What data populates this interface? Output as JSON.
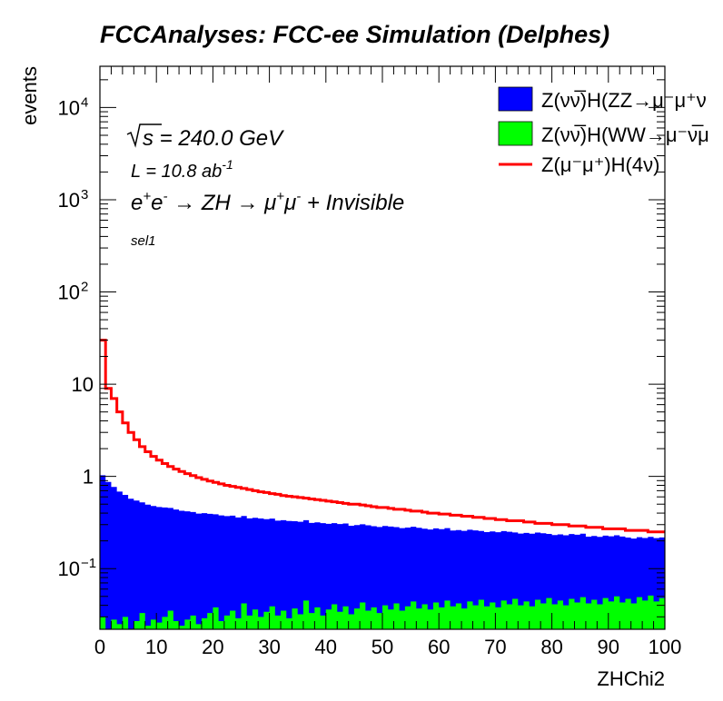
{
  "chart_data": {
    "type": "histogram",
    "title": "FCCAnalyses: FCC-ee Simulation (Delphes)",
    "xlabel": "ZHChi2",
    "ylabel": "events",
    "xlim": [
      0,
      100
    ],
    "ylim": [
      0.022,
      28000
    ],
    "y_scale": "log",
    "bin_width": 1,
    "x_ticks": [
      "0",
      "10",
      "20",
      "30",
      "40",
      "50",
      "60",
      "70",
      "80",
      "90",
      "100"
    ],
    "y_ticks": [
      {
        "label": "10",
        "sup": "−1",
        "value": 0.1
      },
      {
        "label": "1",
        "sup": "",
        "value": 1
      },
      {
        "label": "10",
        "sup": "",
        "value": 10
      },
      {
        "label": "10",
        "sup": "2",
        "value": 100
      },
      {
        "label": "10",
        "sup": "3",
        "value": 1000
      },
      {
        "label": "10",
        "sup": "4",
        "value": 10000
      }
    ],
    "annotations": {
      "sqrt_s": "s",
      "energy": " = 240.0 GeV",
      "lumi": "L = 10.8 ab",
      "lumi_sup": "-1",
      "process_ee_e1": "e",
      "process_ee_sup1": "+",
      "process_ee_e2": "e",
      "process_ee_sup2": "-",
      "process_arrow1": "  → ZH  → μ",
      "process_mu_sup1": "+",
      "process_mu": "μ",
      "process_mu_sup2": "-",
      "process_tail": " + Invisible",
      "selection": "sel1"
    },
    "legend_position": "top-right",
    "series": [
      {
        "name": "Z(νν̅)H(ZZ→μ⁻μ⁺ν",
        "style": "stacked-fill",
        "color": "#0000ff",
        "values": [
          1.0,
          0.85,
          0.74,
          0.66,
          0.6,
          0.55,
          0.52,
          0.49,
          0.47,
          0.45,
          0.44,
          0.43,
          0.42,
          0.41,
          0.4,
          0.39,
          0.38,
          0.37,
          0.37,
          0.36,
          0.35,
          0.35,
          0.34,
          0.34,
          0.33,
          0.33,
          0.32,
          0.32,
          0.32,
          0.31,
          0.31,
          0.3,
          0.3,
          0.3,
          0.29,
          0.29,
          0.29,
          0.28,
          0.28,
          0.28,
          0.27,
          0.27,
          0.27,
          0.27,
          0.26,
          0.26,
          0.26,
          0.26,
          0.25,
          0.25,
          0.25,
          0.25,
          0.24,
          0.24,
          0.24,
          0.24,
          0.24,
          0.23,
          0.23,
          0.23,
          0.23,
          0.23,
          0.22,
          0.22,
          0.22,
          0.22,
          0.22,
          0.21,
          0.21,
          0.21,
          0.21,
          0.21,
          0.21,
          0.2,
          0.2,
          0.2,
          0.2,
          0.2,
          0.2,
          0.19,
          0.19,
          0.19,
          0.19,
          0.19,
          0.19,
          0.19,
          0.18,
          0.18,
          0.18,
          0.18,
          0.18,
          0.18,
          0.18,
          0.17,
          0.17,
          0.17,
          0.17,
          0.17,
          0.17,
          0.17
        ]
      },
      {
        "name": "Z(νν̅)H(WW→μ⁻ν̅μ",
        "style": "stacked-fill",
        "color": "#00ff00",
        "values": [
          0.03,
          0.02,
          0.028,
          0.025,
          0.03,
          0.022,
          0.027,
          0.033,
          0.024,
          0.028,
          0.026,
          0.03,
          0.035,
          0.027,
          0.024,
          0.028,
          0.031,
          0.025,
          0.029,
          0.033,
          0.038,
          0.027,
          0.031,
          0.035,
          0.029,
          0.042,
          0.031,
          0.036,
          0.03,
          0.034,
          0.039,
          0.031,
          0.035,
          0.029,
          0.037,
          0.032,
          0.045,
          0.033,
          0.038,
          0.031,
          0.036,
          0.041,
          0.034,
          0.039,
          0.032,
          0.037,
          0.043,
          0.035,
          0.038,
          0.033,
          0.04,
          0.036,
          0.042,
          0.035,
          0.039,
          0.044,
          0.037,
          0.041,
          0.036,
          0.043,
          0.038,
          0.045,
          0.039,
          0.042,
          0.037,
          0.044,
          0.04,
          0.046,
          0.039,
          0.043,
          0.038,
          0.045,
          0.041,
          0.047,
          0.04,
          0.044,
          0.039,
          0.046,
          0.042,
          0.048,
          0.041,
          0.045,
          0.04,
          0.047,
          0.043,
          0.049,
          0.042,
          0.046,
          0.041,
          0.048,
          0.044,
          0.05,
          0.043,
          0.047,
          0.042,
          0.049,
          0.045,
          0.051,
          0.044,
          0.048
        ]
      },
      {
        "name": "Z(μ⁻μ⁺)H(4ν)",
        "style": "line",
        "color": "#ff0000",
        "values": [
          30.0,
          9.0,
          7.0,
          5.0,
          3.8,
          3.0,
          2.5,
          2.1,
          1.85,
          1.65,
          1.5,
          1.38,
          1.28,
          1.2,
          1.13,
          1.07,
          1.02,
          0.97,
          0.93,
          0.89,
          0.86,
          0.83,
          0.8,
          0.78,
          0.76,
          0.74,
          0.72,
          0.7,
          0.68,
          0.67,
          0.65,
          0.64,
          0.62,
          0.61,
          0.6,
          0.59,
          0.58,
          0.57,
          0.56,
          0.55,
          0.54,
          0.53,
          0.52,
          0.51,
          0.5,
          0.5,
          0.49,
          0.48,
          0.47,
          0.46,
          0.46,
          0.45,
          0.44,
          0.44,
          0.43,
          0.42,
          0.42,
          0.41,
          0.4,
          0.4,
          0.39,
          0.39,
          0.38,
          0.38,
          0.37,
          0.37,
          0.36,
          0.36,
          0.35,
          0.35,
          0.34,
          0.34,
          0.33,
          0.33,
          0.33,
          0.32,
          0.32,
          0.31,
          0.31,
          0.31,
          0.3,
          0.3,
          0.3,
          0.29,
          0.29,
          0.29,
          0.28,
          0.28,
          0.28,
          0.27,
          0.27,
          0.27,
          0.27,
          0.26,
          0.26,
          0.26,
          0.26,
          0.25,
          0.25,
          0.25
        ]
      }
    ]
  }
}
